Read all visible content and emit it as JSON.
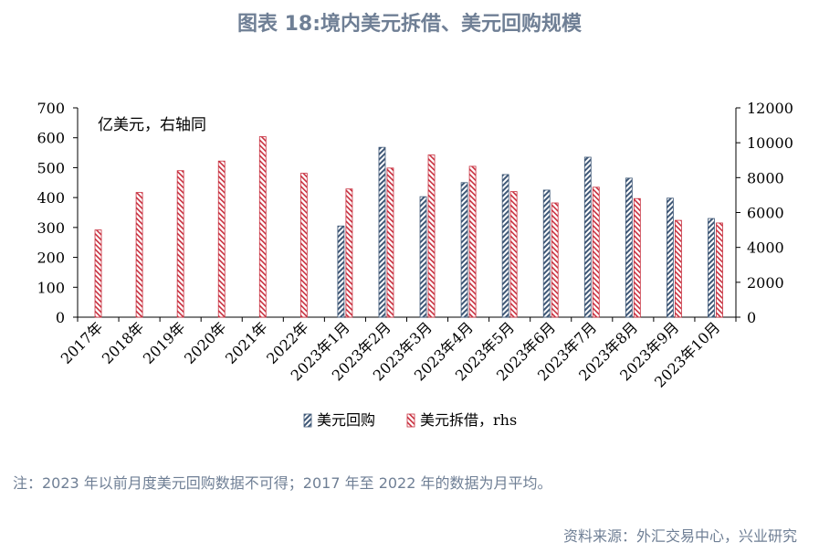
{
  "title": "图表 18:境内美元拆借、美元回购规模",
  "note": "注：2023 年以前月度美元回购数据不可得；2017 年至 2022 年的数据为月平均。",
  "source": "资料来源：外汇交易中心，兴业研究",
  "colors": {
    "repo": "#3f5877",
    "lending": "#c8303f",
    "axis": "#000000"
  },
  "chart_data": {
    "type": "bar",
    "unit_annotation": "亿美元，右轴同",
    "categories": [
      "2017年",
      "2018年",
      "2019年",
      "2020年",
      "2021年",
      "2022年",
      "2023年1月",
      "2023年2月",
      "2023年3月",
      "2023年4月",
      "2023年5月",
      "2023年6月",
      "2023年7月",
      "2023年8月",
      "2023年9月",
      "2023年10月"
    ],
    "left_axis": {
      "ylim": [
        0,
        700
      ],
      "ticks": [
        "0",
        "100",
        "200",
        "300",
        "400",
        "500",
        "600",
        "700"
      ]
    },
    "right_axis": {
      "ylim": [
        0,
        12000
      ],
      "ticks": [
        "0",
        "2000",
        "4000",
        "6000",
        "8000",
        "10000",
        "12000"
      ]
    },
    "series": [
      {
        "name": "美元回购",
        "axis": "left",
        "pattern": "hatch-blue",
        "values": [
          null,
          null,
          null,
          null,
          null,
          null,
          305,
          568,
          403,
          450,
          477,
          425,
          535,
          465,
          398,
          330
        ]
      },
      {
        "name": "美元拆借，rhs",
        "axis": "right",
        "pattern": "hatch-red",
        "values": [
          5000,
          7150,
          8400,
          8950,
          10350,
          8250,
          7350,
          8550,
          9300,
          8650,
          7200,
          6550,
          7450,
          6800,
          5550,
          5400
        ]
      }
    ],
    "legend_position": "bottom",
    "grid": false
  }
}
